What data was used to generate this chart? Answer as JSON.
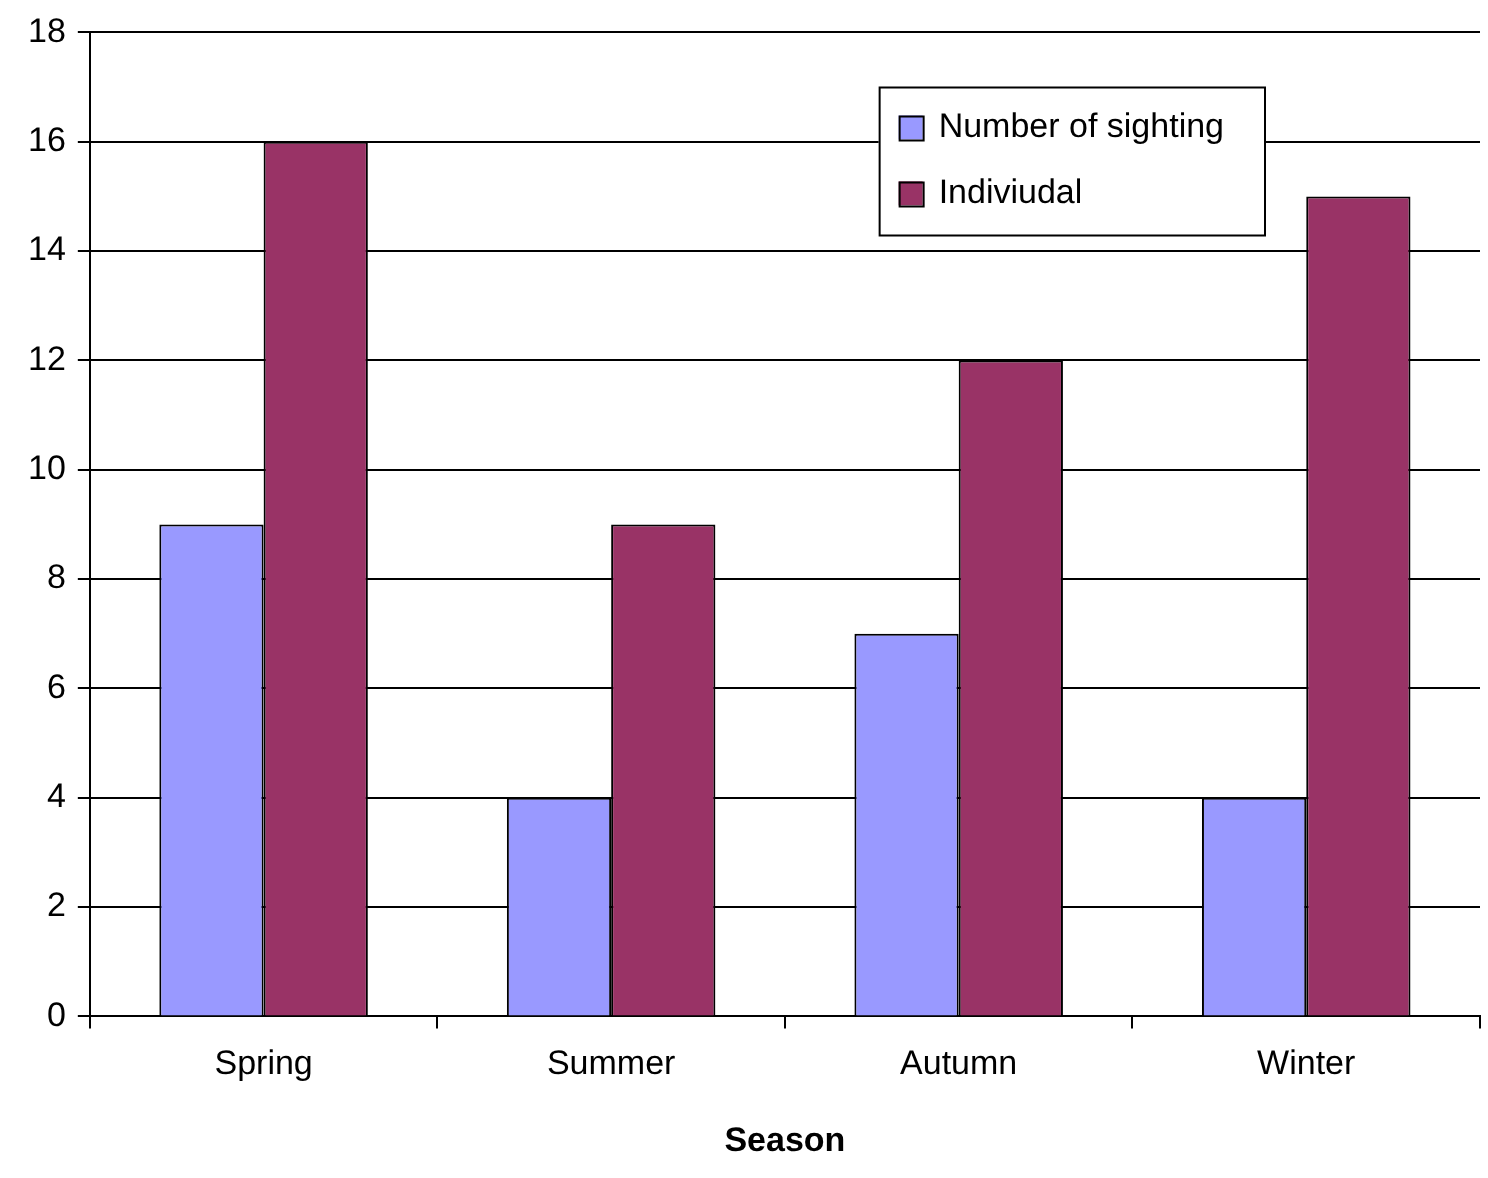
{
  "chart_data": {
    "type": "bar",
    "xlabel": "Season",
    "categories": [
      "Spring",
      "Summer",
      "Autumn",
      "Winter"
    ],
    "series": [
      {
        "name": "Number of sighting",
        "color": "#9999ff",
        "values": [
          9,
          4,
          7,
          4
        ]
      },
      {
        "name": "Indiviudal",
        "color": "#993366",
        "values": [
          16,
          9,
          12,
          15
        ]
      }
    ],
    "ylim": [
      0,
      18
    ],
    "yticks": [
      0,
      2,
      4,
      6,
      8,
      10,
      12,
      14,
      16,
      18
    ],
    "grid": "y",
    "legend": "top right"
  }
}
